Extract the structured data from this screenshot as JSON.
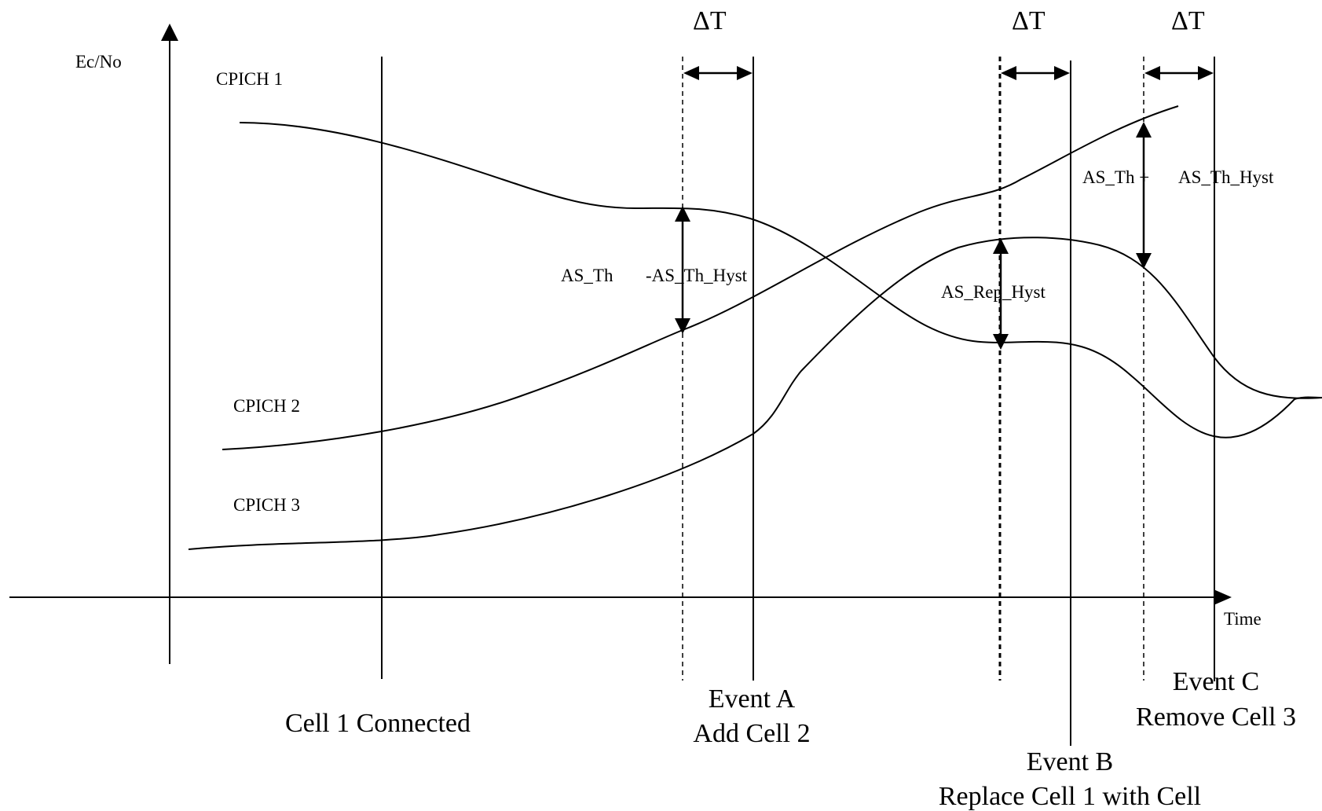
{
  "axes": {
    "y_label": "Ec/No",
    "x_label": "Time"
  },
  "curves": {
    "cpich1": "CPICH 1",
    "cpich2": "CPICH 2",
    "cpich3": "CPICH 3"
  },
  "delta": "ΔT",
  "annotations": {
    "as_th": "AS_Th",
    "as_th_hyst_minus": "-AS_Th_Hyst",
    "as_rep_hyst": "AS_Rep_Hyst",
    "as_th_plus": "AS_Th +",
    "as_th_hyst": "AS_Th_Hyst"
  },
  "events": {
    "cell1_connected": "Cell 1 Connected",
    "event_a_title": "Event A",
    "event_a_desc": "Add Cell 2",
    "event_b_title": "Event B",
    "event_b_desc": "Replace Cell 1 with Cell",
    "event_c_title": "Event C",
    "event_c_desc": "Remove Cell 3"
  }
}
